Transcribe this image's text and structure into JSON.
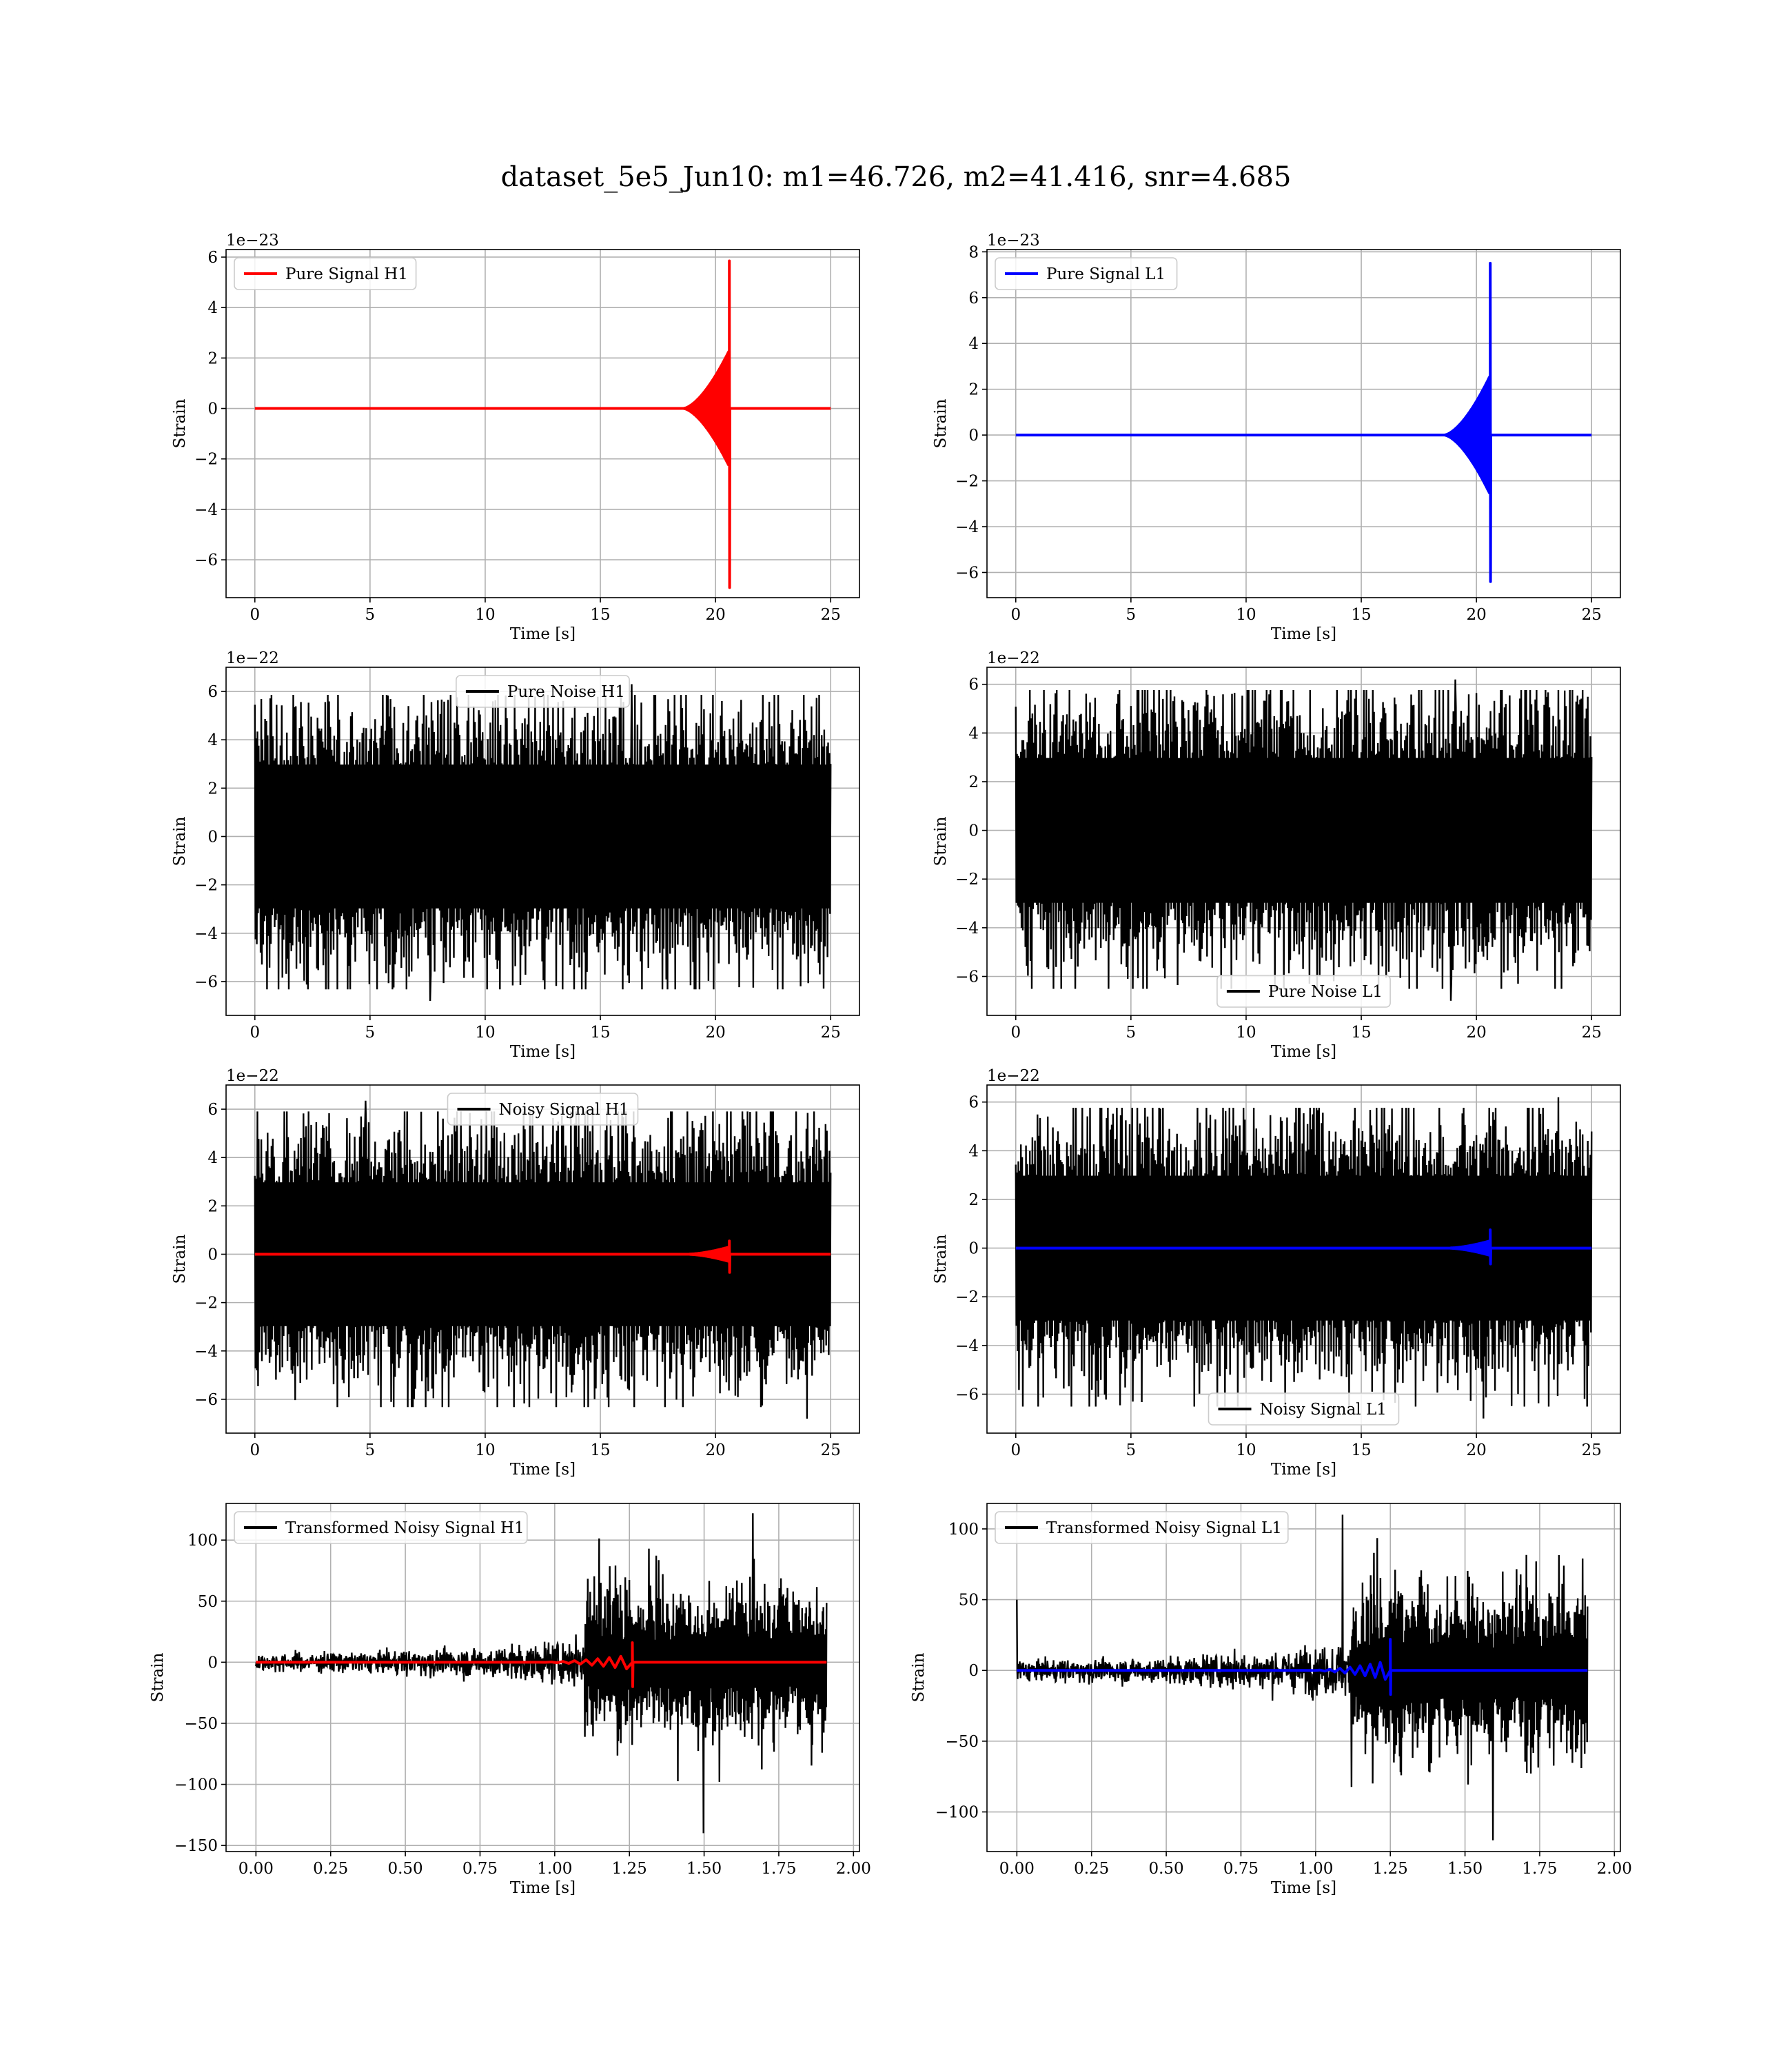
{
  "figure": {
    "title": "dataset_5e5_Jun10: m1=46.726, m2=41.416, snr=4.685"
  },
  "chart_data": [
    {
      "id": "p1",
      "type": "line",
      "legend": [
        "Pure Signal H1"
      ],
      "legend_location": "upper-left",
      "xlabel": "Time [s]",
      "ylabel": "Strain",
      "offset_text": "1e−23",
      "xlim": [
        -1.25,
        26.25
      ],
      "ylim": [
        -7.5,
        6.3
      ],
      "xticks": [
        0,
        5,
        10,
        15,
        20,
        25
      ],
      "xtick_labels": [
        "0",
        "5",
        "10",
        "15",
        "20",
        "25"
      ],
      "yticks": [
        -6,
        -4,
        -2,
        0,
        2,
        4,
        6
      ],
      "ytick_labels": [
        "−6",
        "−4",
        "−2",
        "0",
        "2",
        "4",
        "6"
      ],
      "grid": true,
      "series": [
        {
          "name": "Pure Signal H1",
          "color": "#ff0000",
          "kind": "chirp",
          "x_start": 0,
          "x_end": 25,
          "merger_x": 20.6,
          "onset_x": 18.6,
          "peak_pos": 5.85,
          "peak_neg": -7.1,
          "mid_amp": 2.3
        }
      ]
    },
    {
      "id": "p2",
      "type": "line",
      "legend": [
        "Pure Signal L1"
      ],
      "legend_location": "upper-left",
      "xlabel": "Time [s]",
      "ylabel": "Strain",
      "offset_text": "1e−23",
      "xlim": [
        -1.25,
        26.25
      ],
      "ylim": [
        -7.1,
        8.1
      ],
      "xticks": [
        0,
        5,
        10,
        15,
        20,
        25
      ],
      "xtick_labels": [
        "0",
        "5",
        "10",
        "15",
        "20",
        "25"
      ],
      "yticks": [
        -6,
        -4,
        -2,
        0,
        2,
        4,
        6,
        8
      ],
      "ytick_labels": [
        "−6",
        "−4",
        "−2",
        "0",
        "2",
        "4",
        "6",
        "8"
      ],
      "grid": true,
      "series": [
        {
          "name": "Pure Signal L1",
          "color": "#0000ff",
          "kind": "chirp",
          "x_start": 0,
          "x_end": 25,
          "merger_x": 20.6,
          "onset_x": 18.6,
          "peak_pos": 7.5,
          "peak_neg": -6.4,
          "mid_amp": 2.6
        }
      ]
    },
    {
      "id": "p3",
      "type": "line",
      "legend": [
        "Pure Noise H1"
      ],
      "legend_location": "upper-center",
      "xlabel": "Time [s]",
      "ylabel": "Strain",
      "offset_text": "1e−22",
      "xlim": [
        -1.25,
        26.25
      ],
      "ylim": [
        -7.4,
        7.0
      ],
      "xticks": [
        0,
        5,
        10,
        15,
        20,
        25
      ],
      "xtick_labels": [
        "0",
        "5",
        "10",
        "15",
        "20",
        "25"
      ],
      "yticks": [
        -6,
        -4,
        -2,
        0,
        2,
        4,
        6
      ],
      "ytick_labels": [
        "−6",
        "−4",
        "−2",
        "0",
        "2",
        "4",
        "6"
      ],
      "grid": true,
      "series": [
        {
          "name": "Pure Noise H1",
          "color": "#000000",
          "kind": "noise",
          "x_start": 0,
          "x_end": 25,
          "max": 6.3,
          "min": -6.8,
          "core": 3.5
        }
      ]
    },
    {
      "id": "p4",
      "type": "line",
      "legend": [
        "Pure Noise L1"
      ],
      "legend_location": "lower-center",
      "xlabel": "Time [s]",
      "ylabel": "Strain",
      "offset_text": "1e−22",
      "xlim": [
        -1.25,
        26.25
      ],
      "ylim": [
        -7.6,
        6.7
      ],
      "xticks": [
        0,
        5,
        10,
        15,
        20,
        25
      ],
      "xtick_labels": [
        "0",
        "5",
        "10",
        "15",
        "20",
        "25"
      ],
      "yticks": [
        -6,
        -4,
        -2,
        0,
        2,
        4,
        6
      ],
      "ytick_labels": [
        "−6",
        "−4",
        "−2",
        "0",
        "2",
        "4",
        "6"
      ],
      "grid": true,
      "series": [
        {
          "name": "Pure Noise L1",
          "color": "#000000",
          "kind": "noise",
          "x_start": 0,
          "x_end": 25,
          "max": 6.2,
          "min": -7.0,
          "core": 3.5
        }
      ]
    },
    {
      "id": "p5",
      "type": "line",
      "legend": [
        "Noisy Signal H1"
      ],
      "legend_location": "upper-center",
      "xlabel": "Time [s]",
      "ylabel": "Strain",
      "offset_text": "1e−22",
      "xlim": [
        -1.25,
        26.25
      ],
      "ylim": [
        -7.4,
        7.0
      ],
      "xticks": [
        0,
        5,
        10,
        15,
        20,
        25
      ],
      "xtick_labels": [
        "0",
        "5",
        "10",
        "15",
        "20",
        "25"
      ],
      "yticks": [
        -6,
        -4,
        -2,
        0,
        2,
        4,
        6
      ],
      "ytick_labels": [
        "−6",
        "−4",
        "−2",
        "0",
        "2",
        "4",
        "6"
      ],
      "grid": true,
      "series": [
        {
          "name": "Noisy Signal H1",
          "color": "#000000",
          "kind": "noise",
          "x_start": 0,
          "x_end": 25,
          "max": 6.35,
          "min": -6.8,
          "core": 3.5
        },
        {
          "name": "",
          "color": "#ff0000",
          "kind": "chirp",
          "x_start": 0,
          "x_end": 25,
          "merger_x": 20.6,
          "onset_x": 18.8,
          "peak_pos": 0.55,
          "peak_neg": -0.75,
          "mid_amp": 0.3
        }
      ]
    },
    {
      "id": "p6",
      "type": "line",
      "legend": [
        "Noisy Signal L1"
      ],
      "legend_location": "lower-center",
      "xlabel": "Time [s]",
      "ylabel": "Strain",
      "offset_text": "1e−22",
      "xlim": [
        -1.25,
        26.25
      ],
      "ylim": [
        -7.6,
        6.7
      ],
      "xticks": [
        0,
        5,
        10,
        15,
        20,
        25
      ],
      "xtick_labels": [
        "0",
        "5",
        "10",
        "15",
        "20",
        "25"
      ],
      "yticks": [
        -6,
        -4,
        -2,
        0,
        2,
        4,
        6
      ],
      "ytick_labels": [
        "−6",
        "−4",
        "−2",
        "0",
        "2",
        "4",
        "6"
      ],
      "grid": true,
      "series": [
        {
          "name": "Noisy Signal L1",
          "color": "#000000",
          "kind": "noise",
          "x_start": 0,
          "x_end": 25,
          "max": 6.2,
          "min": -7.0,
          "core": 3.5
        },
        {
          "name": "",
          "color": "#0000ff",
          "kind": "chirp",
          "x_start": 0,
          "x_end": 25,
          "merger_x": 20.6,
          "onset_x": 18.8,
          "peak_pos": 0.75,
          "peak_neg": -0.65,
          "mid_amp": 0.3
        }
      ]
    },
    {
      "id": "p7",
      "type": "line",
      "legend": [
        "Transformed Noisy Signal H1"
      ],
      "legend_location": "upper-left",
      "xlabel": "Time [s]",
      "ylabel": "Strain",
      "offset_text": "",
      "xlim": [
        -0.1,
        2.02
      ],
      "ylim": [
        -155,
        130
      ],
      "xticks": [
        0.0,
        0.25,
        0.5,
        0.75,
        1.0,
        1.25,
        1.5,
        1.75,
        2.0
      ],
      "xtick_labels": [
        "0.00",
        "0.25",
        "0.50",
        "0.75",
        "1.00",
        "1.25",
        "1.50",
        "1.75",
        "2.00"
      ],
      "yticks": [
        -150,
        -100,
        -50,
        0,
        50,
        100
      ],
      "ytick_labels": [
        "−150",
        "−100",
        "−50",
        "0",
        "50",
        "100"
      ],
      "grid": true,
      "series": [
        {
          "name": "Transformed Noisy Signal H1",
          "color": "#000000",
          "kind": "transformed",
          "x_start": 0,
          "x_end": 1.91,
          "rise_x": 1.1,
          "pre_amp": 8,
          "post_amp": 45,
          "max": 122,
          "min": -140
        },
        {
          "name": "",
          "color": "#ff0000",
          "kind": "chirp",
          "x_start": 0,
          "x_end": 1.91,
          "merger_x": 1.26,
          "onset_x": 0.95,
          "peak_pos": 16,
          "peak_neg": -20,
          "mid_amp": 6,
          "cycles": 8
        }
      ]
    },
    {
      "id": "p8",
      "type": "line",
      "legend": [
        "Transformed Noisy Signal L1"
      ],
      "legend_location": "upper-left",
      "xlabel": "Time [s]",
      "ylabel": "Strain",
      "offset_text": "",
      "xlim": [
        -0.1,
        2.02
      ],
      "ylim": [
        -128,
        118
      ],
      "xticks": [
        0.0,
        0.25,
        0.5,
        0.75,
        1.0,
        1.25,
        1.5,
        1.75,
        2.0
      ],
      "xtick_labels": [
        "0.00",
        "0.25",
        "0.50",
        "0.75",
        "1.00",
        "1.25",
        "1.50",
        "1.75",
        "2.00"
      ],
      "yticks": [
        -100,
        -50,
        0,
        50,
        100
      ],
      "ytick_labels": [
        "−100",
        "−50",
        "0",
        "50",
        "100"
      ],
      "grid": true,
      "series": [
        {
          "name": "Transformed Noisy Signal L1",
          "color": "#000000",
          "kind": "transformed",
          "x_start": 0,
          "x_end": 1.91,
          "rise_x": 1.12,
          "pre_amp": 8,
          "post_amp": 42,
          "max": 110,
          "min": -120,
          "spike_start": 50
        },
        {
          "name": "",
          "color": "#0000ff",
          "kind": "chirp",
          "x_start": 0,
          "x_end": 1.91,
          "merger_x": 1.25,
          "onset_x": 0.98,
          "peak_pos": 22,
          "peak_neg": -17,
          "mid_amp": 7,
          "cycles": 8
        }
      ]
    }
  ]
}
